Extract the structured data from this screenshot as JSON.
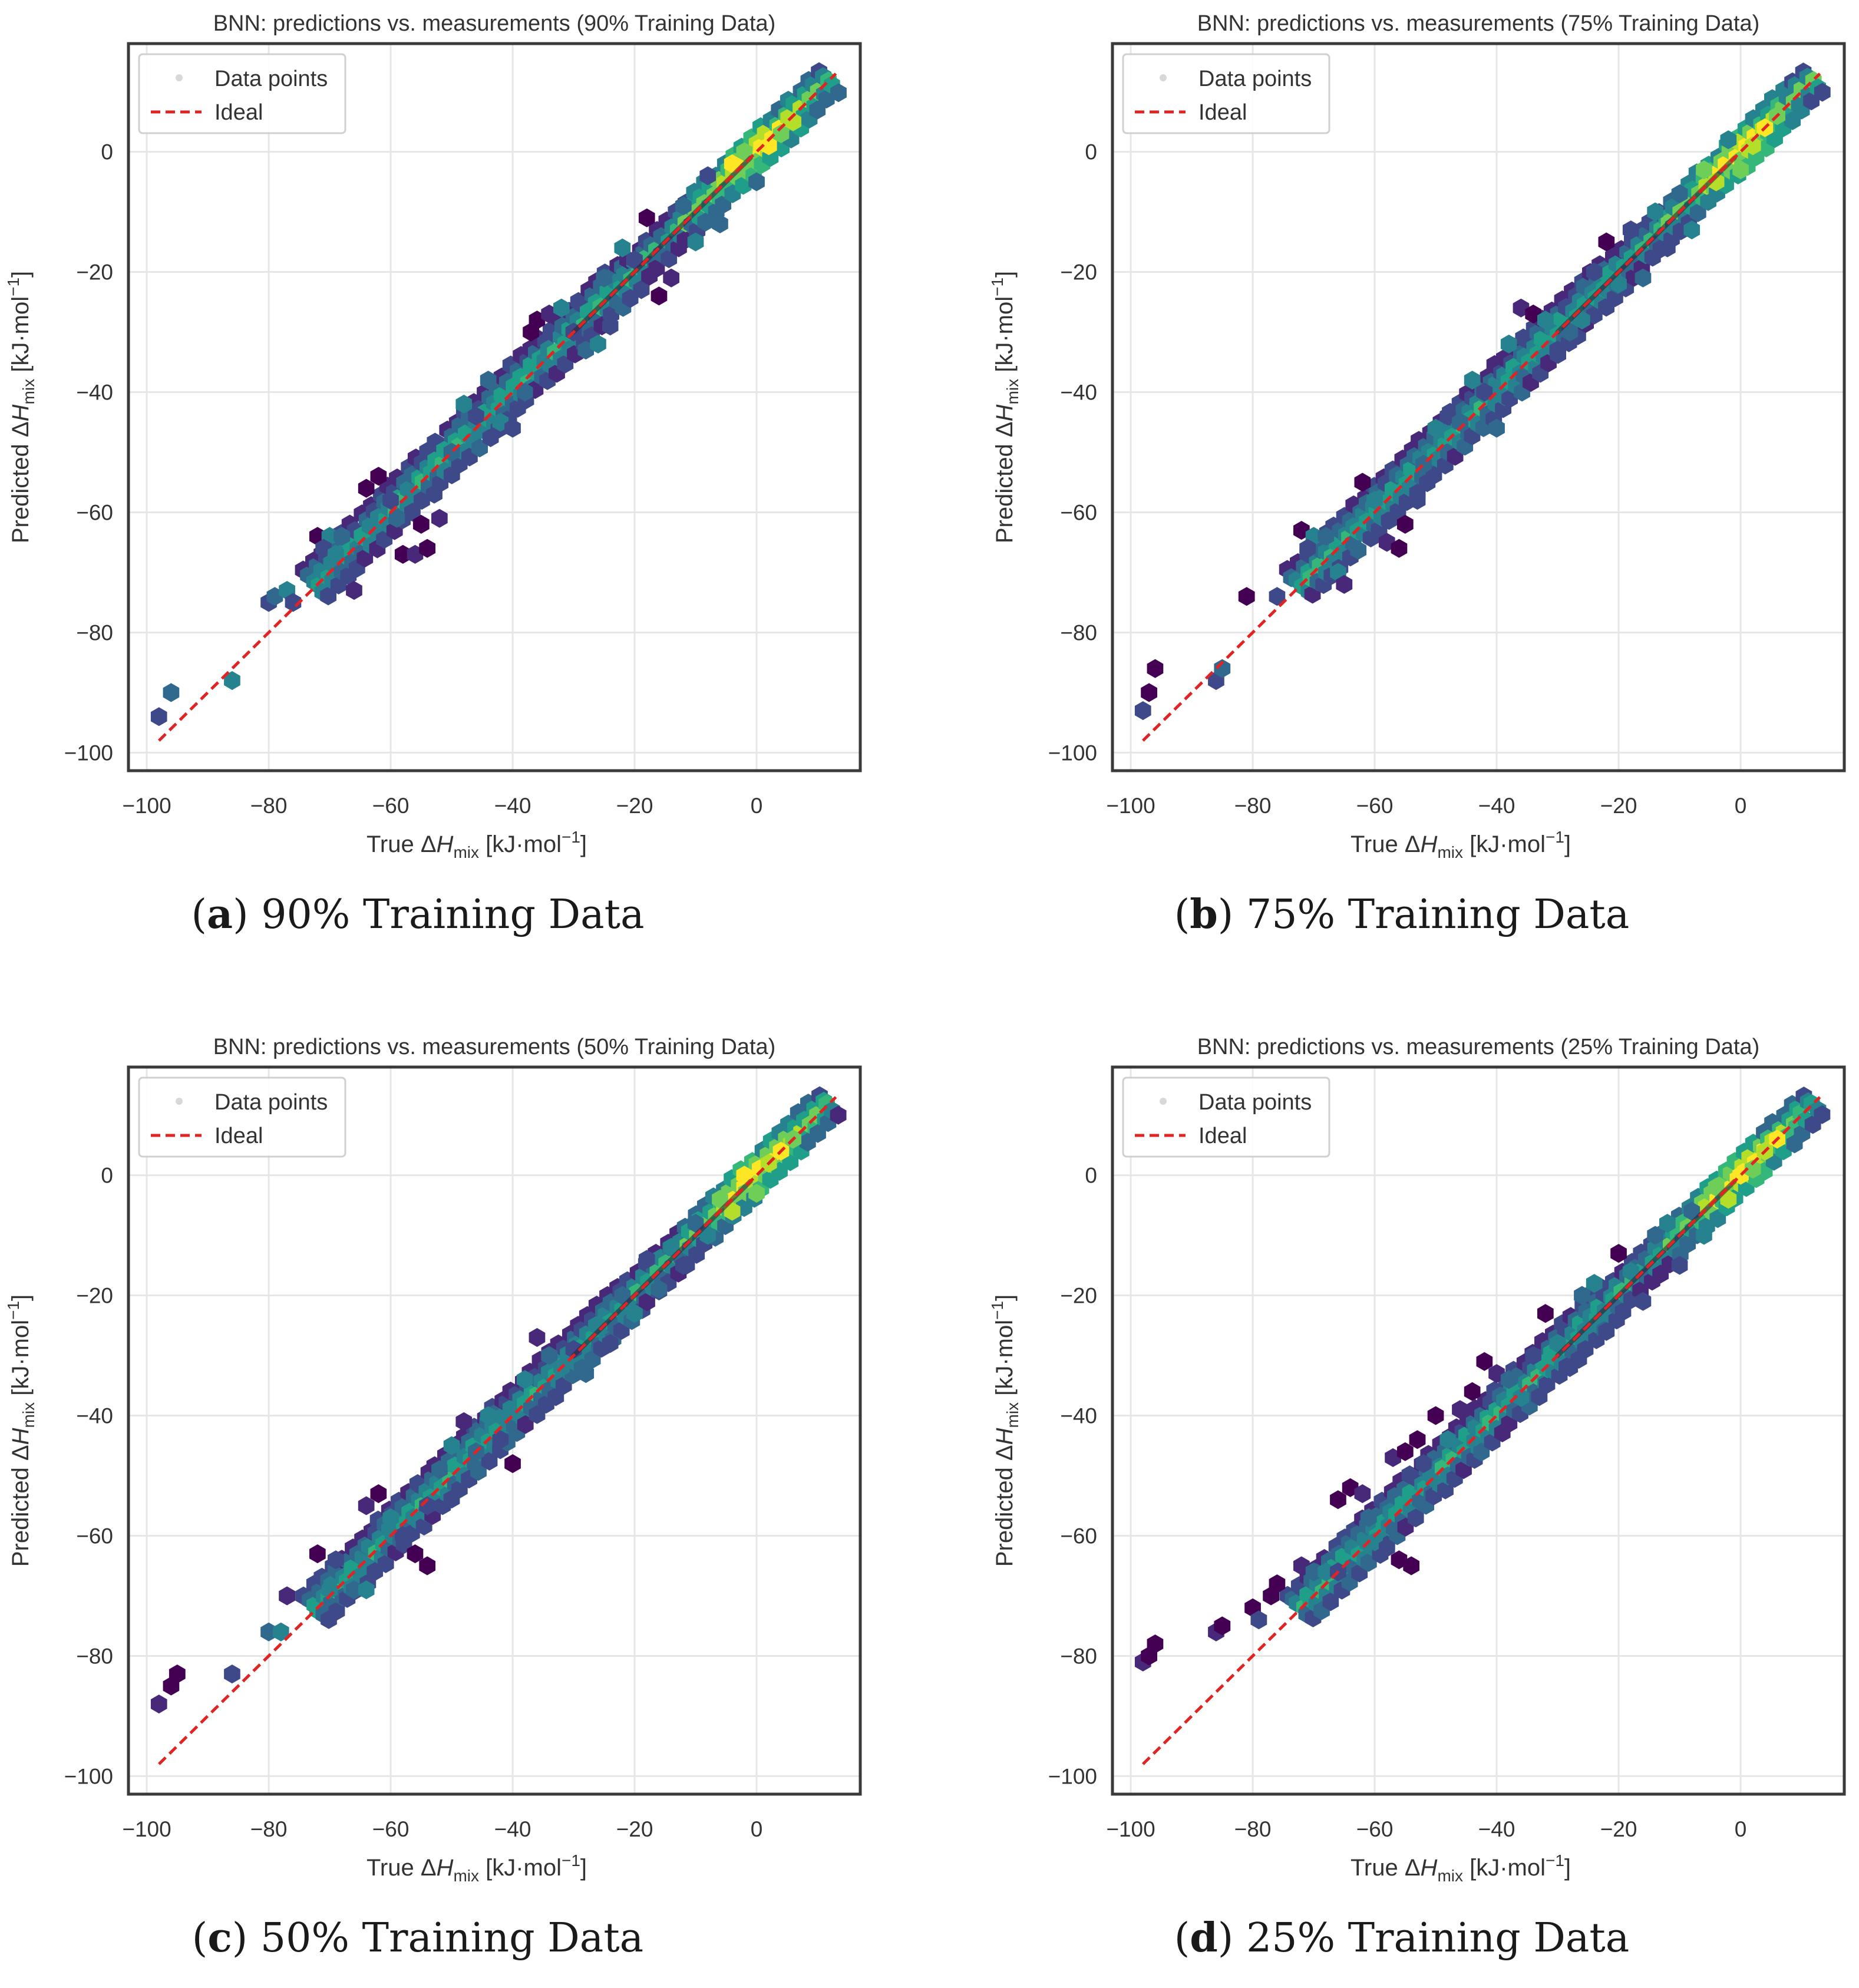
{
  "colors": {
    "ideal_line": "#e02424",
    "frame": "#3a3a3a",
    "grid": "#e6e6e6",
    "legend_marker": "#d8d8d8",
    "text": "#333333",
    "viridis": [
      "#440154",
      "#482878",
      "#3e4989",
      "#31688e",
      "#26828e",
      "#1f9e89",
      "#35b779",
      "#6ece58",
      "#b5de2b",
      "#fde725"
    ],
    "center_dark": "#2b1a2e"
  },
  "axis_template": {
    "xlabel": {
      "prefix": "True ",
      "delta": "Δ",
      "var": "H",
      "sub": "mix",
      "unit": " [kJ·mol",
      "exp": "−1",
      "close": "]"
    },
    "ylabel": {
      "prefix": "Predicted ",
      "delta": "Δ",
      "var": "H",
      "sub": "mix",
      "unit": " [kJ·mol",
      "exp": "−1",
      "close": "]"
    },
    "x_ticks": [
      -100,
      -80,
      -60,
      -40,
      -20,
      0
    ],
    "x_tick_labels": [
      "−100",
      "−80",
      "−60",
      "−40",
      "−20",
      "0"
    ],
    "y_ticks": [
      -100,
      -80,
      -60,
      -40,
      -20,
      0
    ],
    "y_tick_labels": [
      "−100",
      "−80",
      "−60",
      "−40",
      "−20",
      "0"
    ],
    "legend": [
      "Data points",
      "Ideal"
    ]
  },
  "chart_data": [
    {
      "type": "scatter",
      "id": "a",
      "title": "BNN: predictions vs. measurements (90% Training Data)",
      "caption_letter": "a",
      "caption_text": " 90% Training Data",
      "xlim": [
        -103,
        17
      ],
      "ylim": [
        -103,
        18
      ],
      "grid": true,
      "legend_position": "upper-left",
      "ideal_line": {
        "x": [
          -98,
          13
        ],
        "y": [
          -98,
          13
        ]
      },
      "outliers": [
        [
          -98,
          -94
        ],
        [
          -96,
          -90
        ],
        [
          -86,
          -88
        ],
        [
          -80,
          -75
        ],
        [
          -79,
          -74
        ],
        [
          -77,
          -73
        ],
        [
          -76,
          -75
        ],
        [
          -72,
          -64
        ],
        [
          -70,
          -64
        ],
        [
          -71,
          -66
        ],
        [
          -68,
          -64
        ],
        [
          -69,
          -67
        ],
        [
          -66,
          -73
        ],
        [
          -64,
          -56
        ],
        [
          -62,
          -54
        ],
        [
          -60,
          -58
        ],
        [
          -59,
          -61
        ],
        [
          -58,
          -67
        ],
        [
          -56,
          -67
        ],
        [
          -54,
          -66
        ],
        [
          -55,
          -62
        ],
        [
          -52,
          -61
        ],
        [
          -50,
          -50
        ],
        [
          -48,
          -42
        ],
        [
          -46,
          -44
        ],
        [
          -44,
          -38
        ],
        [
          -42,
          -45
        ],
        [
          -40,
          -46
        ],
        [
          -38,
          -40
        ],
        [
          -36,
          -28
        ],
        [
          -34,
          -27
        ],
        [
          -37,
          -30
        ],
        [
          -32,
          -26
        ],
        [
          -30,
          -30
        ],
        [
          -28,
          -33
        ],
        [
          -26,
          -32
        ],
        [
          -24,
          -29
        ],
        [
          -25,
          -21
        ],
        [
          -22,
          -16
        ],
        [
          -20,
          -18
        ],
        [
          -18,
          -11
        ],
        [
          -16,
          -24
        ],
        [
          -14,
          -21
        ],
        [
          -12,
          -9
        ],
        [
          -10,
          -15
        ],
        [
          -8,
          -4
        ],
        [
          -6,
          -12
        ],
        [
          -4,
          -2
        ],
        [
          -2,
          0
        ],
        [
          0,
          -5
        ],
        [
          2,
          1
        ],
        [
          4,
          3
        ],
        [
          6,
          5
        ]
      ]
    },
    {
      "type": "scatter",
      "id": "b",
      "title": "BNN: predictions vs. measurements (75% Training Data)",
      "caption_letter": "b",
      "caption_text": " 75% Training Data",
      "xlim": [
        -103,
        17
      ],
      "ylim": [
        -103,
        18
      ],
      "grid": true,
      "legend_position": "upper-left",
      "ideal_line": {
        "x": [
          -98,
          13
        ],
        "y": [
          -98,
          13
        ]
      },
      "outliers": [
        [
          -98,
          -93
        ],
        [
          -97,
          -90
        ],
        [
          -96,
          -86
        ],
        [
          -86,
          -88
        ],
        [
          -85,
          -86
        ],
        [
          -81,
          -74
        ],
        [
          -76,
          -74
        ],
        [
          -72,
          -63
        ],
        [
          -70,
          -64
        ],
        [
          -71,
          -66
        ],
        [
          -68,
          -64
        ],
        [
          -66,
          -70
        ],
        [
          -65,
          -72
        ],
        [
          -62,
          -55
        ],
        [
          -60,
          -58
        ],
        [
          -58,
          -65
        ],
        [
          -56,
          -66
        ],
        [
          -55,
          -62
        ],
        [
          -53,
          -58
        ],
        [
          -52,
          -52
        ],
        [
          -50,
          -46
        ],
        [
          -48,
          -44
        ],
        [
          -46,
          -45
        ],
        [
          -44,
          -38
        ],
        [
          -42,
          -40
        ],
        [
          -40,
          -46
        ],
        [
          -38,
          -32
        ],
        [
          -36,
          -26
        ],
        [
          -34,
          -27
        ],
        [
          -32,
          -28
        ],
        [
          -30,
          -33
        ],
        [
          -28,
          -30
        ],
        [
          -26,
          -28
        ],
        [
          -24,
          -20
        ],
        [
          -22,
          -15
        ],
        [
          -20,
          -22
        ],
        [
          -18,
          -13
        ],
        [
          -16,
          -21
        ],
        [
          -14,
          -10
        ],
        [
          -12,
          -16
        ],
        [
          -10,
          -7
        ],
        [
          -8,
          -13
        ],
        [
          -6,
          -3
        ],
        [
          -4,
          -5
        ],
        [
          -2,
          2
        ],
        [
          0,
          -3
        ],
        [
          2,
          1
        ],
        [
          4,
          4
        ],
        [
          6,
          6
        ]
      ]
    },
    {
      "type": "scatter",
      "id": "c",
      "title": "BNN: predictions vs. measurements (50% Training Data)",
      "caption_letter": "c",
      "caption_text": " 50% Training Data",
      "xlim": [
        -103,
        17
      ],
      "ylim": [
        -103,
        18
      ],
      "grid": true,
      "legend_position": "upper-left",
      "ideal_line": {
        "x": [
          -98,
          13
        ],
        "y": [
          -98,
          13
        ]
      },
      "outliers": [
        [
          -98,
          -88
        ],
        [
          -96,
          -85
        ],
        [
          -95,
          -83
        ],
        [
          -86,
          -83
        ],
        [
          -80,
          -76
        ],
        [
          -78,
          -76
        ],
        [
          -77,
          -70
        ],
        [
          -72,
          -63
        ],
        [
          -70,
          -69
        ],
        [
          -69,
          -64
        ],
        [
          -66,
          -69
        ],
        [
          -64,
          -69
        ],
        [
          -64,
          -55
        ],
        [
          -62,
          -53
        ],
        [
          -60,
          -57
        ],
        [
          -58,
          -60
        ],
        [
          -56,
          -63
        ],
        [
          -54,
          -65
        ],
        [
          -54,
          -55
        ],
        [
          -52,
          -49
        ],
        [
          -50,
          -45
        ],
        [
          -48,
          -41
        ],
        [
          -46,
          -46
        ],
        [
          -44,
          -40
        ],
        [
          -42,
          -44
        ],
        [
          -40,
          -48
        ],
        [
          -38,
          -34
        ],
        [
          -36,
          -27
        ],
        [
          -34,
          -30
        ],
        [
          -32,
          -32
        ],
        [
          -30,
          -29
        ],
        [
          -28,
          -33
        ],
        [
          -26,
          -25
        ],
        [
          -24,
          -28
        ],
        [
          -22,
          -20
        ],
        [
          -20,
          -23
        ],
        [
          -18,
          -14
        ],
        [
          -16,
          -19
        ],
        [
          -14,
          -12
        ],
        [
          -12,
          -15
        ],
        [
          -10,
          -8
        ],
        [
          -8,
          -10
        ],
        [
          -6,
          -4
        ],
        [
          -4,
          -6
        ],
        [
          -2,
          0
        ],
        [
          0,
          -3
        ],
        [
          2,
          2
        ],
        [
          4,
          4
        ],
        [
          6,
          6
        ]
      ]
    },
    {
      "type": "scatter",
      "id": "d",
      "title": "BNN: predictions vs. measurements (25% Training Data)",
      "caption_letter": "d",
      "caption_text": " 25% Training Data",
      "xlim": [
        -103,
        17
      ],
      "ylim": [
        -103,
        18
      ],
      "grid": true,
      "legend_position": "upper-left",
      "ideal_line": {
        "x": [
          -98,
          13
        ],
        "y": [
          -98,
          13
        ]
      },
      "outliers": [
        [
          -98,
          -81
        ],
        [
          -97,
          -80
        ],
        [
          -96,
          -78
        ],
        [
          -86,
          -76
        ],
        [
          -85,
          -75
        ],
        [
          -80,
          -72
        ],
        [
          -79,
          -74
        ],
        [
          -77,
          -70
        ],
        [
          -76,
          -68
        ],
        [
          -72,
          -65
        ],
        [
          -70,
          -66
        ],
        [
          -68,
          -66
        ],
        [
          -66,
          -66
        ],
        [
          -66,
          -54
        ],
        [
          -64,
          -52
        ],
        [
          -62,
          -53
        ],
        [
          -61,
          -57
        ],
        [
          -60,
          -61
        ],
        [
          -58,
          -62
        ],
        [
          -56,
          -64
        ],
        [
          -54,
          -65
        ],
        [
          -57,
          -47
        ],
        [
          -55,
          -46
        ],
        [
          -53,
          -44
        ],
        [
          -52,
          -48
        ],
        [
          -50,
          -40
        ],
        [
          -48,
          -44
        ],
        [
          -46,
          -39
        ],
        [
          -44,
          -36
        ],
        [
          -42,
          -31
        ],
        [
          -40,
          -33
        ],
        [
          -38,
          -34
        ],
        [
          -36,
          -37
        ],
        [
          -34,
          -30
        ],
        [
          -32,
          -23
        ],
        [
          -30,
          -28
        ],
        [
          -28,
          -32
        ],
        [
          -26,
          -20
        ],
        [
          -24,
          -18
        ],
        [
          -22,
          -26
        ],
        [
          -20,
          -13
        ],
        [
          -18,
          -16
        ],
        [
          -16,
          -21
        ],
        [
          -14,
          -10
        ],
        [
          -12,
          -8
        ],
        [
          -10,
          -15
        ],
        [
          -8,
          -6
        ],
        [
          -6,
          -10
        ],
        [
          -4,
          -2
        ],
        [
          -2,
          -4
        ],
        [
          0,
          0
        ],
        [
          2,
          1
        ],
        [
          4,
          4
        ],
        [
          6,
          6
        ]
      ]
    }
  ]
}
